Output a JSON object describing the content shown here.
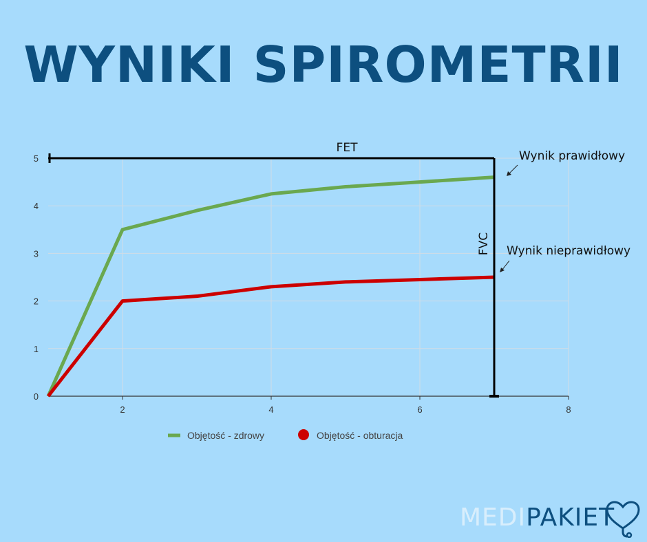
{
  "title": "WYNIKI SPIROMETRII",
  "brand": {
    "part1": "MEDI",
    "part2": "PAKIET"
  },
  "chart_data": {
    "type": "line",
    "xlim": [
      1,
      8
    ],
    "ylim": [
      0,
      5
    ],
    "x_ticks": [
      2,
      4,
      6,
      8
    ],
    "y_ticks": [
      0,
      1,
      2,
      3,
      4,
      5
    ],
    "grid": true,
    "legend_position": "bottom",
    "series": [
      {
        "name": "Objętość - zdrowy",
        "color": "#6aa84f",
        "x": [
          1,
          2,
          3,
          4,
          5,
          6,
          7
        ],
        "y": [
          0,
          3.5,
          3.9,
          4.25,
          4.4,
          4.5,
          4.6
        ]
      },
      {
        "name": "Objętość - obturacja",
        "color": "#cc0000",
        "x": [
          1,
          2,
          3,
          4,
          5,
          6,
          7
        ],
        "y": [
          0,
          2.0,
          2.1,
          2.3,
          2.4,
          2.45,
          2.5
        ]
      }
    ],
    "annotations": {
      "fet": {
        "label": "FET",
        "x_from": 1,
        "x_to": 7,
        "y": 5
      },
      "fvc": {
        "label": "FVC",
        "x": 7,
        "y_from": 0,
        "y_to": 5
      },
      "normal": {
        "label": "Wynik prawidłowy"
      },
      "abnormal": {
        "label": "Wynik nieprawidłowy"
      }
    }
  }
}
